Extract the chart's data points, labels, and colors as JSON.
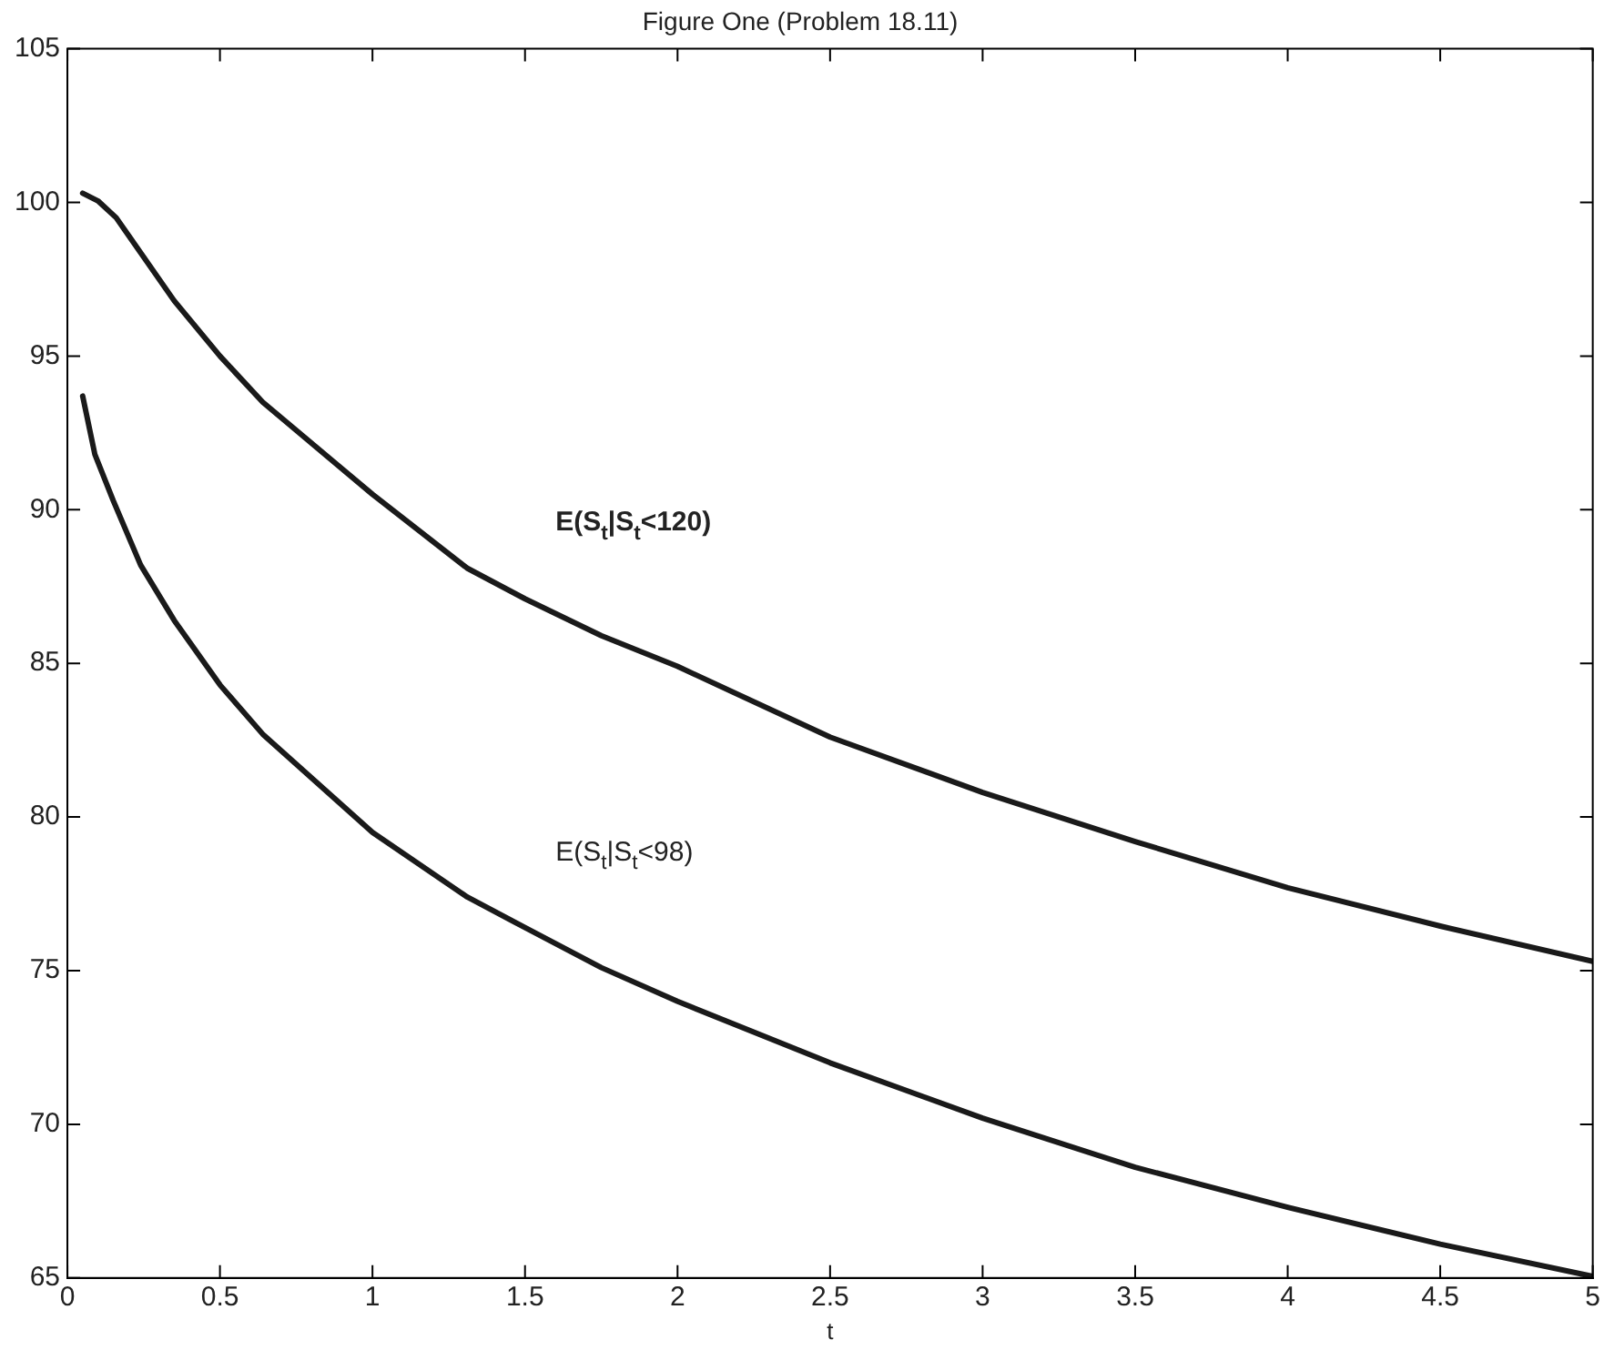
{
  "chart_data": {
    "type": "line",
    "title": "Figure One (Problem 18.11)",
    "xlabel": "t",
    "xlim": [
      0,
      5
    ],
    "xticks": [
      0,
      0.5,
      1,
      1.5,
      2,
      2.5,
      3,
      3.5,
      4,
      4.5,
      5
    ],
    "ylim": [
      65,
      105
    ],
    "yticks": [
      65,
      70,
      75,
      80,
      85,
      90,
      95,
      100,
      105
    ],
    "grid": false,
    "legend": false,
    "marker": "none",
    "line_style": "solid",
    "series": [
      {
        "name": "E(S$_{t}$|S$_{t}$<120)",
        "color": "#1a1a1a",
        "x": [
          0.05,
          0.1,
          0.16,
          0.35,
          0.5,
          0.64,
          1,
          1.31,
          1.5,
          1.75,
          2,
          2.5,
          3,
          3.5,
          4,
          4.5,
          5
        ],
        "values": [
          100.3,
          100.05,
          99.5,
          96.8,
          95.0,
          93.5,
          90.5,
          88.1,
          87.1,
          85.9,
          84.9,
          82.6,
          80.8,
          79.2,
          77.7,
          76.45,
          75.3
        ]
      },
      {
        "name": "E(S$_{t}$|S$_{t}$<98)",
        "color": "#1a1a1a",
        "x": [
          0.05,
          0.09,
          0.15,
          0.24,
          0.35,
          0.5,
          0.64,
          1,
          1.31,
          1.5,
          1.75,
          2,
          2.5,
          3,
          3.5,
          4,
          4.5,
          5
        ],
        "values": [
          93.7,
          91.8,
          90.3,
          88.2,
          86.4,
          84.3,
          82.7,
          79.5,
          77.4,
          76.4,
          75.1,
          74.0,
          72.0,
          70.2,
          68.6,
          67.3,
          66.1,
          65.05
        ]
      }
    ]
  }
}
